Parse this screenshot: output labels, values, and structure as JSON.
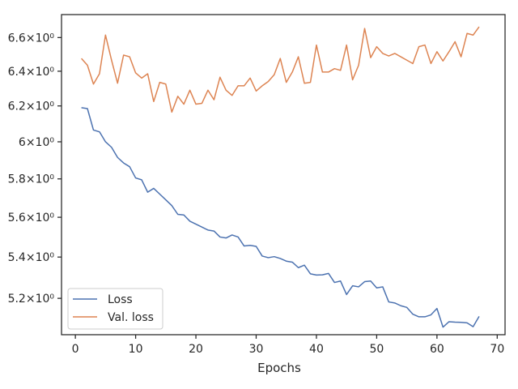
{
  "chart_data": {
    "type": "line",
    "title": "",
    "xlabel": "Epochs",
    "ylabel": "",
    "x_ticks": [
      0,
      10,
      20,
      30,
      40,
      50,
      60,
      70
    ],
    "x_tick_labels": [
      "0",
      "10",
      "20",
      "30",
      "40",
      "50",
      "60",
      "70"
    ],
    "y_ticks": [
      5.2,
      5.4,
      5.6,
      5.8,
      6.0,
      6.2,
      6.4,
      6.6
    ],
    "y_tick_labels": [
      "5.2×10⁰",
      "5.4×10⁰",
      "5.6×10⁰",
      "5.8×10⁰",
      "6×10⁰",
      "6.2×10⁰",
      "6.4×10⁰",
      "6.6×10⁰"
    ],
    "xlim": [
      -2.3,
      71.3
    ],
    "ylim": [
      5.03,
      6.74
    ],
    "y_scale": "log",
    "grid": false,
    "legend_position": "lower-left",
    "series": [
      {
        "name": "Loss",
        "color": "#4c72b0",
        "x": [
          1,
          2,
          3,
          4,
          5,
          6,
          7,
          8,
          9,
          10,
          11,
          12,
          13,
          14,
          15,
          16,
          17,
          18,
          19,
          20,
          21,
          22,
          23,
          24,
          25,
          26,
          27,
          28,
          29,
          30,
          31,
          32,
          33,
          34,
          35,
          36,
          37,
          38,
          39,
          40,
          41,
          42,
          43,
          44,
          45,
          46,
          47,
          48,
          49,
          50,
          51,
          52,
          53,
          54,
          55,
          56,
          57,
          58,
          59,
          60,
          61,
          62,
          63,
          64,
          65,
          66,
          67
        ],
        "values": [
          6.19,
          6.185,
          6.065,
          6.055,
          6.0,
          5.97,
          5.915,
          5.885,
          5.865,
          5.805,
          5.795,
          5.73,
          5.75,
          5.72,
          5.69,
          5.66,
          5.615,
          5.612,
          5.58,
          5.565,
          5.55,
          5.535,
          5.53,
          5.5,
          5.495,
          5.51,
          5.5,
          5.455,
          5.458,
          5.453,
          5.405,
          5.397,
          5.402,
          5.393,
          5.38,
          5.375,
          5.348,
          5.36,
          5.318,
          5.312,
          5.313,
          5.32,
          5.276,
          5.283,
          5.218,
          5.26,
          5.255,
          5.28,
          5.283,
          5.25,
          5.255,
          5.183,
          5.178,
          5.165,
          5.157,
          5.125,
          5.113,
          5.113,
          5.122,
          5.152,
          5.065,
          5.09,
          5.088,
          5.087,
          5.085,
          5.067,
          5.115
        ]
      },
      {
        "name": "Val. loss",
        "color": "#dd8452",
        "x": [
          1,
          2,
          3,
          4,
          5,
          6,
          7,
          8,
          9,
          10,
          11,
          12,
          13,
          14,
          15,
          16,
          17,
          18,
          19,
          20,
          21,
          22,
          23,
          24,
          25,
          26,
          27,
          28,
          29,
          30,
          31,
          32,
          33,
          34,
          35,
          36,
          37,
          38,
          39,
          40,
          41,
          42,
          43,
          44,
          45,
          46,
          47,
          48,
          49,
          50,
          51,
          52,
          53,
          54,
          55,
          56,
          57,
          58,
          59,
          60,
          61,
          62,
          63,
          64,
          65,
          66,
          67
        ],
        "values": [
          6.475,
          6.435,
          6.325,
          6.385,
          6.615,
          6.465,
          6.33,
          6.495,
          6.485,
          6.39,
          6.36,
          6.385,
          6.225,
          6.335,
          6.325,
          6.165,
          6.255,
          6.21,
          6.29,
          6.21,
          6.215,
          6.29,
          6.235,
          6.365,
          6.29,
          6.26,
          6.315,
          6.315,
          6.36,
          6.285,
          6.315,
          6.34,
          6.38,
          6.475,
          6.335,
          6.395,
          6.485,
          6.33,
          6.335,
          6.555,
          6.395,
          6.395,
          6.415,
          6.405,
          6.555,
          6.35,
          6.435,
          6.655,
          6.48,
          6.545,
          6.505,
          6.49,
          6.505,
          6.485,
          6.465,
          6.445,
          6.545,
          6.555,
          6.445,
          6.515,
          6.46,
          6.515,
          6.575,
          6.485,
          6.625,
          6.615,
          6.665
        ]
      }
    ]
  }
}
